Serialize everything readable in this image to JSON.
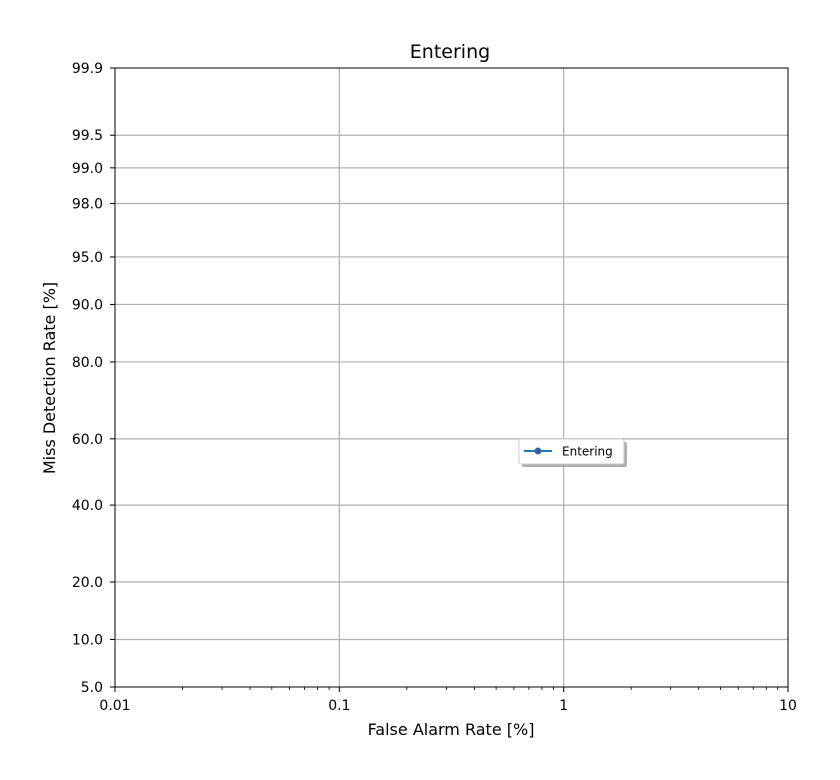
{
  "chart_data": {
    "type": "line",
    "title": "Entering",
    "xlabel": "False Alarm Rate [%]",
    "ylabel": "Miss Detection Rate [%]",
    "x_scale": "log",
    "y_scale": "normal-deviate",
    "xlim": [
      0.01,
      10
    ],
    "ylim": [
      5.0,
      99.9
    ],
    "x_ticks": [
      {
        "value": 0.01,
        "label": "0.01"
      },
      {
        "value": 0.1,
        "label": "0.1"
      },
      {
        "value": 1,
        "label": "1"
      },
      {
        "value": 10,
        "label": "10"
      }
    ],
    "y_ticks": [
      {
        "value": 5.0,
        "label": "5.0"
      },
      {
        "value": 10.0,
        "label": "10.0"
      },
      {
        "value": 20.0,
        "label": "20.0"
      },
      {
        "value": 40.0,
        "label": "40.0"
      },
      {
        "value": 60.0,
        "label": "60.0"
      },
      {
        "value": 80.0,
        "label": "80.0"
      },
      {
        "value": 90.0,
        "label": "90.0"
      },
      {
        "value": 95.0,
        "label": "95.0"
      },
      {
        "value": 98.0,
        "label": "98.0"
      },
      {
        "value": 99.0,
        "label": "99.0"
      },
      {
        "value": 99.5,
        "label": "99.5"
      },
      {
        "value": 99.9,
        "label": "99.9"
      }
    ],
    "grid": true,
    "legend_position": "center-right",
    "series": [
      {
        "name": "Entering",
        "color": "#1f77b4",
        "x": [],
        "y": []
      }
    ]
  }
}
